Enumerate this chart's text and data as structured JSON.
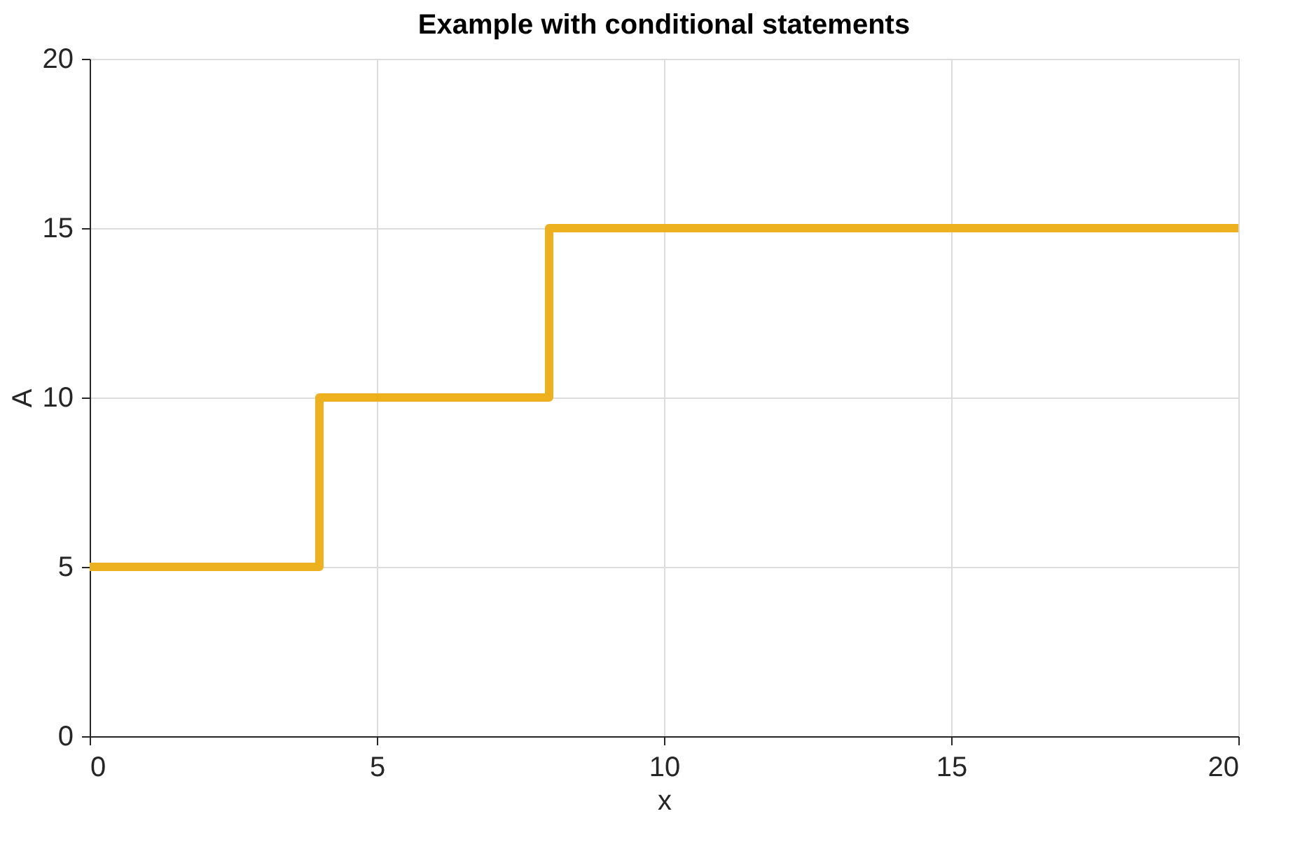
{
  "chart_data": {
    "type": "step",
    "title": "Example with conditional statements",
    "xlabel": "x",
    "ylabel": "A",
    "x": [
      0,
      4,
      8,
      20
    ],
    "series": [
      {
        "color": "#edb120",
        "values": [
          5,
          10,
          15,
          15
        ]
      }
    ],
    "xlim": [
      0,
      20
    ],
    "xticks": [
      0,
      5,
      10,
      15,
      20
    ],
    "ylim": [
      0,
      20
    ],
    "yticks": [
      0,
      5,
      10,
      15,
      20
    ],
    "grid": true
  }
}
